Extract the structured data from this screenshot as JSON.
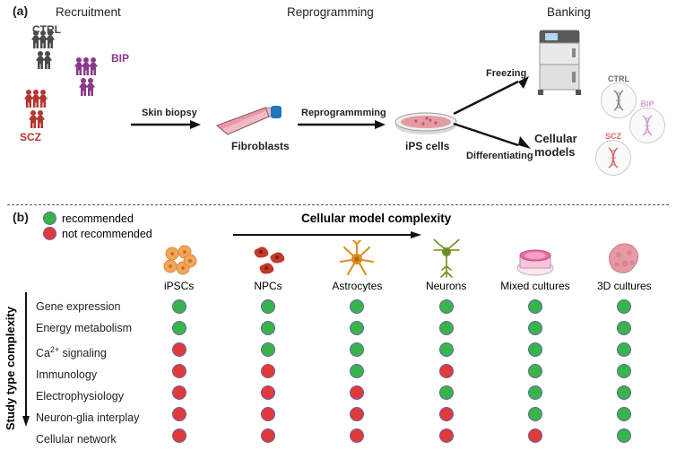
{
  "panel_a": {
    "tag": "(a)",
    "headers": {
      "recruitment": "Recruitment",
      "reprogramming": "Reprogramming",
      "banking": "Banking"
    },
    "groups": {
      "ctrl": {
        "label": "CTRL",
        "color": "#4a4a4a"
      },
      "bip": {
        "label": "BIP",
        "color": "#8a3a8a"
      },
      "scz": {
        "label": "SCZ",
        "color": "#b5362f"
      }
    },
    "steps": {
      "skin_biopsy": "Skin biopsy",
      "fibroblasts": "Fibroblasts",
      "reprogramming_arrow": "Reprogrammming",
      "ips_cells": "iPS cells",
      "freezing": "Freezing",
      "differentiating": "Differentiating",
      "cellular_models": "Cellular\nmodels"
    },
    "dna_labels": {
      "ctrl": "CTRL",
      "bip": "BIP",
      "scz": "SCZ"
    },
    "colors": {
      "flask_body": "#e79aa5",
      "flask_cap": "#1f77c0",
      "dish_medium": "#e79aa5",
      "dish_rim": "#888",
      "freezer_body": "#d9d9d9",
      "freezer_dark": "#5a5a5a",
      "arrow": "#111"
    }
  },
  "panel_b": {
    "tag": "(b)",
    "legend": {
      "recommended": "recommended",
      "not_recommended": "not recommended"
    },
    "axis_titles": {
      "complexity": "Cellular model complexity",
      "study": "Study type complexity"
    },
    "columns": [
      "iPSCs",
      "NPCs",
      "Astrocytes",
      "Neurons",
      "Mixed cultures",
      "3D cultures"
    ],
    "rows": [
      "Gene expression",
      "Energy metabolism",
      "Ca²⁺ signaling",
      "Immunology",
      "Electrophysiology",
      "Neuron-glia interplay",
      "Cellular network"
    ],
    "matrix": [
      [
        "g",
        "g",
        "g",
        "g",
        "g",
        "g"
      ],
      [
        "g",
        "g",
        "g",
        "g",
        "g",
        "g"
      ],
      [
        "r",
        "g",
        "g",
        "g",
        "g",
        "g"
      ],
      [
        "r",
        "r",
        "g",
        "r",
        "g",
        "g"
      ],
      [
        "r",
        "r",
        "r",
        "g",
        "g",
        "g"
      ],
      [
        "r",
        "r",
        "r",
        "r",
        "g",
        "g"
      ],
      [
        "r",
        "r",
        "r",
        "r",
        "r",
        "g"
      ]
    ],
    "colors": {
      "green": "#38b54a",
      "red": "#e03a3a",
      "dot_border": "#6a5fa6",
      "ipsc": "#f2a65a",
      "npc": "#c0392b",
      "astro": "#e08a1e",
      "neuron": "#6b8e23",
      "dish_pink": "#e86aa6",
      "organoid": "#e79aa5"
    }
  }
}
